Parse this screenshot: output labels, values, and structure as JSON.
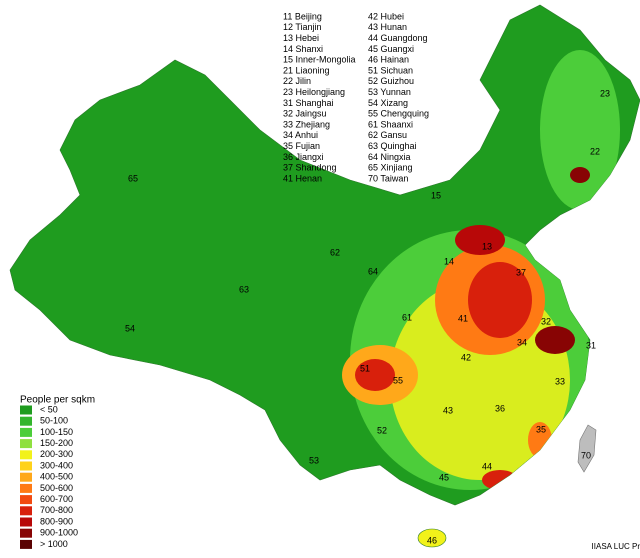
{
  "title_list": [
    "11 Beijing",
    "12 Tianjin",
    "13 Hebei",
    "14 Shanxi",
    "15 Inner-Mongolia",
    "21 Liaoning",
    "22 Jilin",
    "23 Heilongjiang",
    "31 Shanghai",
    "32 Jaingsu",
    "33 Zhejiang",
    "34 Anhui",
    "35 Fujian",
    "36 Jiangxi",
    "37 Shandong",
    "41 Henan",
    "42 Hubei",
    "43 Hunan",
    "44 Guangdong",
    "45 Guangxi",
    "46 Hainan",
    "51 Sichuan",
    "52 Guizhou",
    "53 Yunnan",
    "54 Xizang",
    "55 Chengquing",
    "61 Shaanxi",
    "62 Gansu",
    "63 Quinghai",
    "64 Ningxia",
    "65 Xinjiang",
    "70 Taiwan"
  ],
  "legend": {
    "title": "People per sqkm",
    "items": [
      {
        "label": "< 50",
        "color": "#1f9c1f"
      },
      {
        "label": "50-100",
        "color": "#33b52d"
      },
      {
        "label": "100-150",
        "color": "#4ccd3a"
      },
      {
        "label": "150-200",
        "color": "#8fe040"
      },
      {
        "label": "200-300",
        "color": "#f2f21a"
      },
      {
        "label": "300-400",
        "color": "#ffd21a"
      },
      {
        "label": "400-500",
        "color": "#ffa81a"
      },
      {
        "label": "500-600",
        "color": "#ff7a14"
      },
      {
        "label": "600-700",
        "color": "#f24a10"
      },
      {
        "label": "700-800",
        "color": "#d8200c"
      },
      {
        "label": "800-900",
        "color": "#b80808"
      },
      {
        "label": "900-1000",
        "color": "#880404"
      },
      {
        "label": "> 1000",
        "color": "#5a0202"
      }
    ]
  },
  "map_labels": [
    "65",
    "63",
    "54",
    "62",
    "64",
    "15",
    "23",
    "22",
    "13",
    "14",
    "37",
    "61",
    "41",
    "32",
    "34",
    "31",
    "51",
    "55",
    "42",
    "33",
    "43",
    "36",
    "52",
    "35",
    "53",
    "44",
    "45",
    "70",
    "46"
  ],
  "credit": "IIASA LUC Pr"
}
